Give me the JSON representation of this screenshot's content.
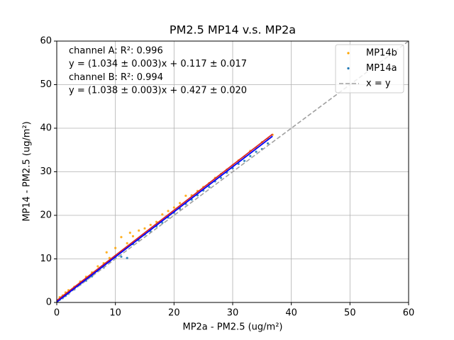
{
  "chart_data": {
    "type": "scatter",
    "title": "PM2.5 MP14 v.s. MP2a",
    "x_label": "MP2a - PM2.5 (ug/m²)",
    "y_label": "MP14 - PM2.5 (ug/m²)",
    "xlim": [
      0,
      60
    ],
    "ylim": [
      0,
      60
    ],
    "xticks": [
      0,
      10,
      20,
      30,
      40,
      50,
      60
    ],
    "yticks": [
      0,
      10,
      20,
      30,
      40,
      50,
      60
    ],
    "grid": true,
    "legend": "upper right",
    "annotations": [
      "channel A: R²: 0.996",
      "y = (1.034 ± 0.003)x + 0.117 ± 0.017",
      "channel B: R²: 0.994",
      "y = (1.038 ± 0.003)x + 0.427 ± 0.020"
    ],
    "series": [
      {
        "name": "MP14b",
        "kind": "points",
        "color": "#ffa500",
        "x": [
          0.5,
          1,
          1.5,
          2,
          3,
          4,
          5,
          6,
          7,
          8,
          8.5,
          9,
          10,
          11,
          12,
          12.5,
          13,
          14,
          15,
          16,
          17,
          18,
          19,
          20,
          21,
          22,
          23,
          24,
          25,
          26,
          27,
          28,
          29,
          30,
          31,
          32,
          33,
          34,
          35,
          36,
          36.8
        ],
        "values": [
          1.2,
          1.6,
          2.3,
          2.8,
          3.6,
          4.8,
          5.9,
          6.9,
          8.3,
          9.0,
          11.5,
          10.2,
          12.5,
          15.0,
          13.6,
          16.0,
          15.2,
          16.5,
          17.0,
          17.8,
          18.5,
          20.2,
          21.0,
          21.8,
          22.8,
          24.5,
          24.6,
          25.6,
          26.5,
          27.4,
          28.6,
          29.5,
          30.5,
          31.5,
          32.6,
          33.5,
          34.8,
          35.5,
          36.8,
          37.6,
          38.5
        ]
      },
      {
        "name": "MP14a",
        "kind": "points",
        "color": "#1f77b4",
        "x": [
          0.5,
          1,
          1.5,
          2,
          3,
          4,
          5,
          6,
          7,
          8,
          9,
          10,
          11,
          12,
          13,
          14,
          15,
          16,
          17,
          18,
          19,
          20,
          21,
          22,
          23,
          24,
          25,
          26,
          27,
          28,
          29,
          30,
          31,
          32,
          33,
          34,
          35,
          36
        ],
        "values": [
          0.6,
          1.0,
          1.5,
          2.0,
          3.0,
          4.1,
          5.0,
          6.0,
          7.2,
          8.0,
          9.4,
          10.3,
          10.5,
          10.2,
          13.4,
          14.2,
          15.6,
          16.3,
          17.5,
          18.3,
          19.5,
          20.6,
          21.5,
          22.6,
          23.6,
          24.6,
          25.7,
          26.5,
          27.8,
          28.6,
          29.8,
          30.8,
          31.8,
          32.5,
          33.6,
          34.6,
          35.2,
          36.5
        ]
      },
      {
        "name": "x = y",
        "kind": "dashed",
        "color": "#a0a0a0",
        "x": [
          0,
          60
        ],
        "values": [
          0,
          60
        ]
      }
    ],
    "fit_lines": [
      {
        "color": "#d62728",
        "x": [
          0,
          36.8
        ],
        "values": [
          0.427,
          38.63
        ]
      },
      {
        "color": "#0000ff",
        "x": [
          0,
          36.8
        ],
        "values": [
          0.117,
          38.17
        ]
      }
    ]
  }
}
